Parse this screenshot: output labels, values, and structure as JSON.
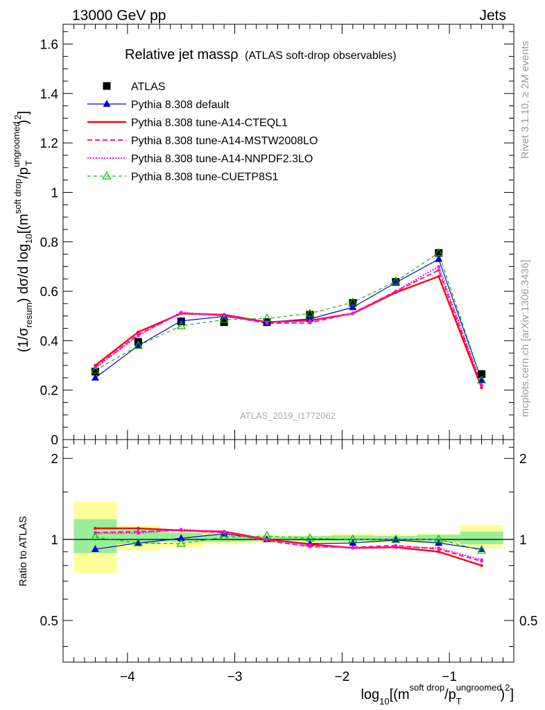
{
  "header": {
    "left": "13000 GeV pp",
    "right": "Jets"
  },
  "plot_title": {
    "main": "Relative jet massρ",
    "sub": "(ATLAS soft-drop observables)"
  },
  "side_labels": {
    "rivet": "Rivet 3.1.10, ≥ 2M events",
    "mcplots": "mcplots.cern.ch [arXiv:1306.3436]"
  },
  "watermark": "ATLAS_2019_I1772062",
  "legend": [
    {
      "key": "atlas",
      "label": "ATLAS"
    },
    {
      "key": "default",
      "label": "Pythia 8.308 default"
    },
    {
      "key": "cteql1",
      "label": "Pythia 8.308 tune-A14-CTEQL1"
    },
    {
      "key": "mstw",
      "label": "Pythia 8.308 tune-A14-MSTW2008LO"
    },
    {
      "key": "nnpdf",
      "label": "Pythia 8.308 tune-A14-NNPDF2.3LO"
    },
    {
      "key": "cuetp",
      "label": "Pythia 8.308 tune-CUETP8S1"
    }
  ],
  "ylabel_main": {
    "pre": "(1/σ",
    "sub1": "resum",
    "mid": ") dσ/d log",
    "sub2": "10",
    "post1": "[(m",
    "sup1": "soft drop",
    "post2": "/p",
    "sub3": "T",
    "sup2": "ungroomed",
    "post3": ")",
    "sup3": "2",
    "post4": "]"
  },
  "ylabel_ratio": "Ratio to ATLAS",
  "xlabel": {
    "pre": "log",
    "sub1": "10",
    "mid": "[(m",
    "sup1": "soft drop",
    "mid2": "/p",
    "sub2": "T",
    "sup2": "ungroomed",
    "mid3": ")",
    "sup3": "2",
    "post": "]"
  },
  "chart_data": [
    {
      "type": "line",
      "panel": "main",
      "x": [
        -4.3,
        -3.9,
        -3.5,
        -3.1,
        -2.7,
        -2.3,
        -1.9,
        -1.5,
        -1.1,
        -0.7
      ],
      "xlim": [
        -4.6,
        -0.4
      ],
      "ylim": [
        0,
        1.68
      ],
      "yticks": [
        0,
        0.2,
        0.4,
        0.6,
        0.8,
        1,
        1.2,
        1.4,
        1.6
      ],
      "ytick_labels": [
        "0",
        "0.2",
        "0.4",
        "0.6",
        "0.8",
        "1",
        "1.2",
        "1.4",
        "1.6"
      ],
      "series": [
        {
          "name": "ATLAS",
          "key": "atlas",
          "color": "#000000",
          "values": [
            0.275,
            0.395,
            0.478,
            0.475,
            0.475,
            0.505,
            0.553,
            0.638,
            0.755,
            0.265
          ]
        },
        {
          "name": "Pythia 8.308 default",
          "key": "default",
          "color": "#0000cc",
          "values": [
            0.25,
            0.38,
            0.48,
            0.498,
            0.475,
            0.488,
            0.535,
            0.635,
            0.73,
            0.24
          ]
        },
        {
          "name": "Pythia 8.308 tune-A14-CTEQL1",
          "key": "cteql1",
          "color": "#ff0000",
          "values": [
            0.3,
            0.435,
            0.51,
            0.505,
            0.475,
            0.482,
            0.51,
            0.595,
            0.66,
            0.21
          ]
        },
        {
          "name": "Pythia 8.308 tune-A14-MSTW2008LO",
          "key": "mstw",
          "color": "#ff1493",
          "values": [
            0.292,
            0.425,
            0.512,
            0.502,
            0.47,
            0.472,
            0.512,
            0.6,
            0.685,
            0.22
          ]
        },
        {
          "name": "Pythia 8.308 tune-A14-NNPDF2.3LO",
          "key": "nnpdf",
          "color": "#ff00ff",
          "values": [
            0.29,
            0.42,
            0.515,
            0.5,
            0.475,
            0.48,
            0.51,
            0.6,
            0.7,
            0.22
          ]
        },
        {
          "name": "Pythia 8.308 tune-CUETP8S1",
          "key": "cuetp",
          "color": "#00bb00",
          "values": [
            0.28,
            0.38,
            0.46,
            0.485,
            0.49,
            0.51,
            0.555,
            0.64,
            0.755,
            0.24
          ]
        }
      ]
    },
    {
      "type": "line",
      "panel": "ratio",
      "x": [
        -4.3,
        -3.9,
        -3.5,
        -3.1,
        -2.7,
        -2.3,
        -1.9,
        -1.5,
        -1.1,
        -0.7
      ],
      "xlim": [
        -4.6,
        -0.4
      ],
      "ylim": [
        0.35,
        2.35
      ],
      "yticks": [
        0.5,
        1,
        2
      ],
      "ytick_labels": [
        "0.5",
        "1",
        "2"
      ],
      "xticks": [
        -4,
        -3,
        -2,
        -1
      ],
      "xtick_labels": [
        "−4",
        "−3",
        "−2",
        "−1"
      ],
      "bands": [
        {
          "x": [
            -4.5,
            -4.1
          ],
          "inner": [
            0.89,
            1.19
          ],
          "outer": [
            0.75,
            1.38
          ]
        },
        {
          "x": [
            -4.1,
            -3.7
          ],
          "inner": [
            0.96,
            1.09
          ],
          "outer": [
            0.91,
            1.12
          ]
        },
        {
          "x": [
            -3.7,
            -3.3
          ],
          "inner": [
            0.98,
            1.06
          ],
          "outer": [
            0.93,
            1.08
          ]
        },
        {
          "x": [
            -3.3,
            -2.9
          ],
          "inner": [
            0.98,
            1.04
          ],
          "outer": [
            0.96,
            1.06
          ]
        },
        {
          "x": [
            -2.9,
            -2.5
          ],
          "inner": [
            0.985,
            1.025
          ],
          "outer": [
            0.97,
            1.04
          ]
        },
        {
          "x": [
            -2.5,
            -2.1
          ],
          "inner": [
            0.985,
            1.03
          ],
          "outer": [
            0.97,
            1.04
          ]
        },
        {
          "x": [
            -2.1,
            -1.7
          ],
          "inner": [
            0.985,
            1.035
          ],
          "outer": [
            0.97,
            1.05
          ]
        },
        {
          "x": [
            -1.7,
            -1.3
          ],
          "inner": [
            0.985,
            1.03
          ],
          "outer": [
            0.97,
            1.045
          ]
        },
        {
          "x": [
            -1.3,
            -0.9
          ],
          "inner": [
            0.975,
            1.04
          ],
          "outer": [
            0.96,
            1.05
          ]
        },
        {
          "x": [
            -0.9,
            -0.5
          ],
          "inner": [
            0.96,
            1.07
          ],
          "outer": [
            0.93,
            1.13
          ]
        }
      ],
      "reference": 1,
      "series": [
        {
          "name": "Pythia 8.308 default",
          "key": "default",
          "color": "#0000cc",
          "values": [
            0.92,
            0.97,
            1.01,
            1.05,
            1.0,
            0.965,
            0.97,
            0.995,
            0.97,
            0.92
          ]
        },
        {
          "name": "Pythia 8.308 tune-A14-CTEQL1",
          "key": "cteql1",
          "color": "#ff0000",
          "values": [
            1.1,
            1.1,
            1.08,
            1.07,
            1.0,
            0.96,
            0.93,
            0.935,
            0.9,
            0.8
          ]
        },
        {
          "name": "Pythia 8.308 tune-A14-MSTW2008LO",
          "key": "mstw",
          "color": "#ff1493",
          "values": [
            1.06,
            1.07,
            1.08,
            1.06,
            0.99,
            0.94,
            0.935,
            0.95,
            0.92,
            0.83
          ]
        },
        {
          "name": "Pythia 8.308 tune-A14-NNPDF2.3LO",
          "key": "nnpdf",
          "color": "#ff00ff",
          "values": [
            1.055,
            1.055,
            1.09,
            1.065,
            1.0,
            0.95,
            0.93,
            0.94,
            0.93,
            0.84
          ]
        },
        {
          "name": "Pythia 8.308 tune-CUETP8S1",
          "key": "cuetp",
          "color": "#00bb00",
          "values": [
            1.02,
            0.97,
            0.965,
            1.02,
            1.03,
            1.01,
            1.0,
            1.0,
            1.0,
            0.91
          ]
        }
      ]
    }
  ]
}
